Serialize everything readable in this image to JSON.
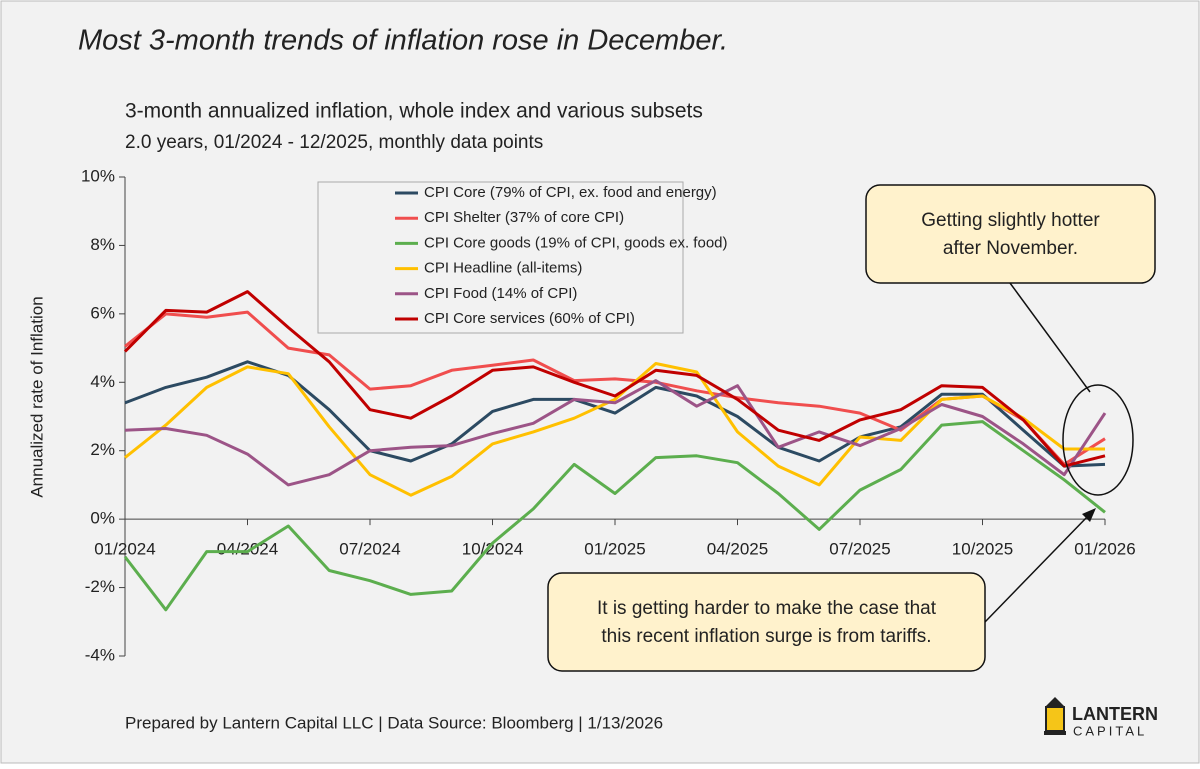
{
  "chart_data": {
    "type": "line",
    "title": "Most 3-month trends of inflation rose in December.",
    "subtitle": "3-month annualized inflation, whole index and various subsets",
    "subtitle2": "2.0 years, 01/2024 - 12/2025, monthly data points",
    "y_label": "Annualized rate of Inflation",
    "x": [
      "01/2024",
      "02/2024",
      "03/2024",
      "04/2024",
      "05/2024",
      "06/2024",
      "07/2024",
      "08/2024",
      "09/2024",
      "10/2024",
      "11/2024",
      "12/2024",
      "01/2025",
      "02/2025",
      "03/2025",
      "04/2025",
      "05/2025",
      "06/2025",
      "07/2025",
      "08/2025",
      "09/2025",
      "10/2025",
      "11/2025",
      "12/2025",
      "01/2026"
    ],
    "xlim": [
      "01/2024",
      "01/2026"
    ],
    "xticks": [
      "01/2024",
      "04/2024",
      "07/2024",
      "10/2024",
      "01/2025",
      "04/2025",
      "07/2025",
      "10/2025",
      "01/2026"
    ],
    "ylim": [
      -4,
      10
    ],
    "yticks": [
      {
        "value": -4,
        "label": "-4%"
      },
      {
        "value": -2,
        "label": "-2%"
      },
      {
        "value": 0,
        "label": "0%"
      },
      {
        "value": 2,
        "label": "2%"
      },
      {
        "value": 4,
        "label": "4%"
      },
      {
        "value": 6,
        "label": "6%"
      },
      {
        "value": 8,
        "label": "8%"
      },
      {
        "value": 10,
        "label": "10%"
      }
    ],
    "series": [
      {
        "name": "CPI Core (79% of CPI, ex. food and energy)",
        "color": "#2c4a62",
        "values": [
          3.4,
          3.85,
          4.15,
          4.6,
          4.2,
          3.2,
          2.0,
          1.7,
          2.2,
          3.15,
          3.5,
          3.5,
          3.1,
          3.85,
          3.6,
          3.0,
          2.1,
          1.7,
          2.4,
          2.7,
          3.65,
          3.65,
          2.6,
          1.55,
          1.6
        ]
      },
      {
        "name": "CPI Shelter (37% of core CPI)",
        "color": "#f04e4e",
        "values": [
          5.05,
          6.0,
          5.9,
          6.05,
          5.0,
          4.8,
          3.8,
          3.9,
          4.35,
          4.5,
          4.65,
          4.05,
          4.1,
          4.0,
          3.75,
          3.55,
          3.4,
          3.3,
          3.1,
          2.6,
          3.5,
          3.6,
          2.9,
          1.6,
          2.35
        ]
      },
      {
        "name": "CPI Core goods (19% of CPI, goods ex. food)",
        "color": "#5cae4e",
        "values": [
          -1.1,
          -2.65,
          -0.95,
          -0.95,
          -0.2,
          -1.5,
          -1.8,
          -2.2,
          -2.1,
          -0.7,
          0.3,
          1.6,
          0.75,
          1.8,
          1.85,
          1.65,
          0.75,
          -0.3,
          0.85,
          1.45,
          2.75,
          2.85,
          2.0,
          1.15,
          0.2
        ]
      },
      {
        "name": "CPI Headline (all-items)",
        "color": "#ffc000",
        "values": [
          1.8,
          2.75,
          3.85,
          4.45,
          4.25,
          2.7,
          1.3,
          0.7,
          1.25,
          2.2,
          2.55,
          2.95,
          3.5,
          4.55,
          4.3,
          2.55,
          1.55,
          1.0,
          2.4,
          2.3,
          3.5,
          3.6,
          2.95,
          2.05,
          2.05
        ]
      },
      {
        "name": "CPI Food (14% of CPI)",
        "color": "#9c5487",
        "values": [
          2.6,
          2.65,
          2.45,
          1.9,
          1.0,
          1.3,
          2.0,
          2.1,
          2.15,
          2.5,
          2.8,
          3.5,
          3.4,
          4.05,
          3.3,
          3.9,
          2.1,
          2.55,
          2.15,
          2.65,
          3.35,
          3.0,
          2.2,
          1.3,
          3.1
        ]
      },
      {
        "name": "CPI Core services (60% of CPI)",
        "color": "#c00000",
        "values": [
          4.9,
          6.1,
          6.05,
          6.65,
          5.6,
          4.6,
          3.2,
          2.95,
          3.6,
          4.35,
          4.45,
          4.0,
          3.6,
          4.35,
          4.2,
          3.5,
          2.6,
          2.3,
          2.9,
          3.2,
          3.9,
          3.85,
          2.9,
          1.55,
          1.85
        ]
      }
    ],
    "annotations": [
      {
        "lines": [
          "Getting slightly hotter",
          "after November."
        ]
      },
      {
        "lines": [
          "It is getting harder to make the case that",
          "this recent inflation surge is from tariffs."
        ]
      }
    ]
  },
  "footer": "Prepared by Lantern Capital LLC | Data Source: Bloomberg | 1/13/2026",
  "logo": {
    "name": "LANTERN",
    "sub": "CAPITAL"
  }
}
